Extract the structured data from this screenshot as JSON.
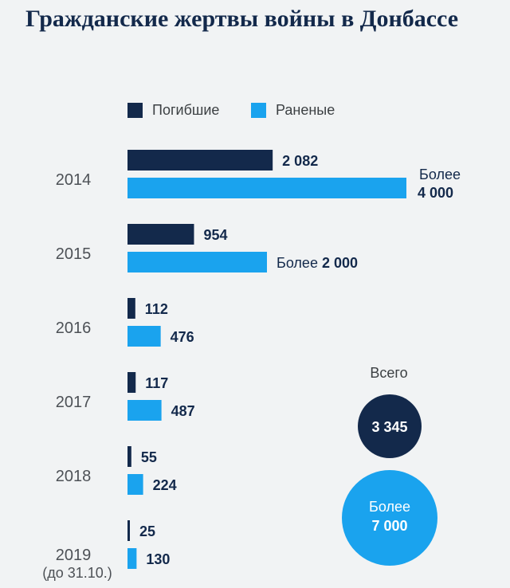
{
  "title": "Гражданские жертвы войны в Донбассе",
  "legend": [
    {
      "label": "Погибшие",
      "color": "#13294b"
    },
    {
      "label": "Раненые",
      "color": "#1aa3ee"
    }
  ],
  "chart_data": {
    "type": "bar",
    "orientation": "horizontal",
    "title": "Гражданские жертвы войны в Донбассе",
    "categories": [
      "2014",
      "2015",
      "2016",
      "2017",
      "2018",
      "2019"
    ],
    "category_notes": [
      "",
      "",
      "",
      "",
      "",
      "(до 31.10.)"
    ],
    "series": [
      {
        "name": "Погибшие",
        "color": "#13294b",
        "values": [
          2082,
          954,
          112,
          117,
          55,
          25
        ],
        "label_prefix": [
          "",
          "",
          "",
          "",
          "",
          ""
        ],
        "label_value": [
          "2 082",
          "954",
          "112",
          "117",
          "55",
          "25"
        ]
      },
      {
        "name": "Раненые",
        "color": "#1aa3ee",
        "values": [
          4000,
          2000,
          476,
          487,
          224,
          130
        ],
        "label_prefix": [
          "Более",
          "Более",
          "",
          "",
          "",
          ""
        ],
        "label_value": [
          "4 000",
          "2 000",
          "476",
          "487",
          "224",
          "130"
        ]
      }
    ],
    "xlim": [
      0,
      4000
    ],
    "grid": false,
    "legend_position": "top-left",
    "totals": {
      "caption": "Всего",
      "killed": {
        "prefix": "",
        "value": "3 345",
        "color": "#13294b"
      },
      "wounded": {
        "prefix": "Более",
        "value": "7 000",
        "color": "#1aa3ee"
      }
    }
  }
}
